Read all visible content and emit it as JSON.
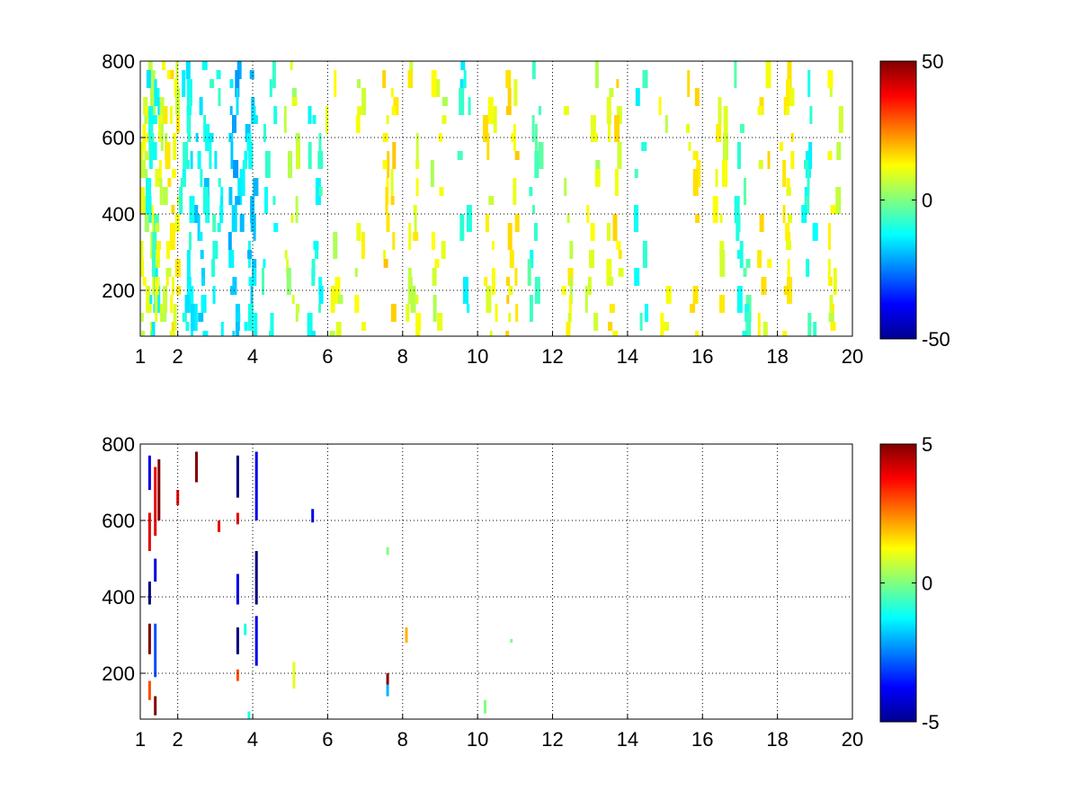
{
  "chart_data": [
    {
      "type": "heatmap",
      "title": "",
      "xlabel": "",
      "ylabel": "",
      "xlim": [
        1,
        20
      ],
      "ylim": [
        80,
        800
      ],
      "x_ticks": [
        1,
        2,
        4,
        6,
        8,
        10,
        12,
        14,
        16,
        18,
        20
      ],
      "y_ticks": [
        200,
        400,
        600,
        800
      ],
      "x_tick_labels": [
        "1",
        "2",
        "4",
        "6",
        "8",
        "10",
        "12",
        "14",
        "16",
        "18",
        "20"
      ],
      "y_tick_labels": [
        "200",
        "400",
        "600",
        "800"
      ],
      "grid": true,
      "colormap": "jet",
      "colorbar": {
        "min": -50,
        "max": 50,
        "ticks": [
          50,
          0,
          -50
        ],
        "tick_labels": [
          "50",
          "0",
          "-50"
        ]
      },
      "columns": [
        {
          "x": 1.15,
          "value": 8,
          "density": 0.9
        },
        {
          "x": 1.3,
          "value": -10,
          "density": 0.8
        },
        {
          "x": 1.55,
          "value": 10,
          "density": 0.75
        },
        {
          "x": 1.85,
          "value": 12,
          "density": 0.7
        },
        {
          "x": 2.2,
          "value": -12,
          "density": 0.7
        },
        {
          "x": 2.6,
          "value": -14,
          "density": 0.65
        },
        {
          "x": 3.0,
          "value": -10,
          "density": 0.65
        },
        {
          "x": 3.5,
          "value": -18,
          "density": 0.7
        },
        {
          "x": 3.9,
          "value": -15,
          "density": 0.65
        },
        {
          "x": 4.4,
          "value": -8,
          "density": 0.5
        },
        {
          "x": 5.0,
          "value": 6,
          "density": 0.4
        },
        {
          "x": 5.6,
          "value": -10,
          "density": 0.35
        },
        {
          "x": 6.1,
          "value": 8,
          "density": 0.35
        },
        {
          "x": 6.8,
          "value": 10,
          "density": 0.3
        },
        {
          "x": 7.6,
          "value": 14,
          "density": 0.55
        },
        {
          "x": 8.2,
          "value": 10,
          "density": 0.45
        },
        {
          "x": 8.9,
          "value": 8,
          "density": 0.3
        },
        {
          "x": 9.6,
          "value": -10,
          "density": 0.45
        },
        {
          "x": 10.3,
          "value": 12,
          "density": 0.45
        },
        {
          "x": 10.9,
          "value": 14,
          "density": 0.6
        },
        {
          "x": 11.5,
          "value": -8,
          "density": 0.45
        },
        {
          "x": 12.3,
          "value": 10,
          "density": 0.3
        },
        {
          "x": 13.0,
          "value": 8,
          "density": 0.3
        },
        {
          "x": 13.6,
          "value": 12,
          "density": 0.6
        },
        {
          "x": 14.3,
          "value": -10,
          "density": 0.35
        },
        {
          "x": 15.0,
          "value": 8,
          "density": 0.3
        },
        {
          "x": 15.7,
          "value": 12,
          "density": 0.3
        },
        {
          "x": 16.4,
          "value": 10,
          "density": 0.35
        },
        {
          "x": 17.0,
          "value": -8,
          "density": 0.55
        },
        {
          "x": 17.6,
          "value": 12,
          "density": 0.55
        },
        {
          "x": 18.2,
          "value": 14,
          "density": 0.65
        },
        {
          "x": 18.8,
          "value": -10,
          "density": 0.45
        },
        {
          "x": 19.5,
          "value": 10,
          "density": 0.4
        }
      ]
    },
    {
      "type": "heatmap",
      "title": "",
      "xlabel": "",
      "ylabel": "",
      "xlim": [
        1,
        20
      ],
      "ylim": [
        80,
        800
      ],
      "x_ticks": [
        1,
        2,
        4,
        6,
        8,
        10,
        12,
        14,
        16,
        18,
        20
      ],
      "y_ticks": [
        200,
        400,
        600,
        800
      ],
      "x_tick_labels": [
        "1",
        "2",
        "4",
        "6",
        "8",
        "10",
        "12",
        "14",
        "16",
        "18",
        "20"
      ],
      "y_tick_labels": [
        "200",
        "400",
        "600",
        "800"
      ],
      "grid": true,
      "colormap": "jet",
      "colorbar": {
        "min": -5,
        "max": 5,
        "ticks": [
          5,
          0,
          -5
        ],
        "tick_labels": [
          "5",
          "0",
          "-5"
        ]
      },
      "cells": [
        {
          "x": 1.25,
          "y0": 680,
          "y1": 770,
          "value": -4
        },
        {
          "x": 1.25,
          "y0": 520,
          "y1": 620,
          "value": 4
        },
        {
          "x": 1.25,
          "y0": 380,
          "y1": 440,
          "value": -5
        },
        {
          "x": 1.25,
          "y0": 250,
          "y1": 330,
          "value": 5
        },
        {
          "x": 1.25,
          "y0": 130,
          "y1": 180,
          "value": 3
        },
        {
          "x": 1.4,
          "y0": 560,
          "y1": 740,
          "value": 4
        },
        {
          "x": 1.4,
          "y0": 440,
          "y1": 500,
          "value": -4
        },
        {
          "x": 1.4,
          "y0": 190,
          "y1": 330,
          "value": -3
        },
        {
          "x": 1.4,
          "y0": 90,
          "y1": 140,
          "value": 5
        },
        {
          "x": 1.5,
          "y0": 600,
          "y1": 760,
          "value": 5
        },
        {
          "x": 2.0,
          "y0": 640,
          "y1": 680,
          "value": 4
        },
        {
          "x": 2.5,
          "y0": 700,
          "y1": 780,
          "value": 5
        },
        {
          "x": 3.1,
          "y0": 570,
          "y1": 600,
          "value": 4
        },
        {
          "x": 3.6,
          "y0": 660,
          "y1": 770,
          "value": -5
        },
        {
          "x": 3.6,
          "y0": 590,
          "y1": 620,
          "value": 4
        },
        {
          "x": 3.6,
          "y0": 380,
          "y1": 460,
          "value": -4
        },
        {
          "x": 3.6,
          "y0": 250,
          "y1": 320,
          "value": -5
        },
        {
          "x": 3.6,
          "y0": 180,
          "y1": 210,
          "value": 3
        },
        {
          "x": 3.8,
          "y0": 300,
          "y1": 330,
          "value": -1
        },
        {
          "x": 4.1,
          "y0": 600,
          "y1": 780,
          "value": -4
        },
        {
          "x": 4.1,
          "y0": 380,
          "y1": 520,
          "value": -5
        },
        {
          "x": 4.1,
          "y0": 220,
          "y1": 350,
          "value": -4
        },
        {
          "x": 3.9,
          "y0": 80,
          "y1": 100,
          "value": -1
        },
        {
          "x": 5.1,
          "y0": 160,
          "y1": 230,
          "value": 1
        },
        {
          "x": 5.6,
          "y0": 595,
          "y1": 630,
          "value": -4
        },
        {
          "x": 7.6,
          "y0": 170,
          "y1": 200,
          "value": 5
        },
        {
          "x": 7.6,
          "y0": 140,
          "y1": 170,
          "value": -2
        },
        {
          "x": 7.6,
          "y0": 510,
          "y1": 530,
          "value": 0
        },
        {
          "x": 8.1,
          "y0": 280,
          "y1": 320,
          "value": 2
        },
        {
          "x": 10.2,
          "y0": 95,
          "y1": 130,
          "value": 0
        },
        {
          "x": 10.9,
          "y0": 280,
          "y1": 290,
          "value": 0
        }
      ]
    }
  ]
}
